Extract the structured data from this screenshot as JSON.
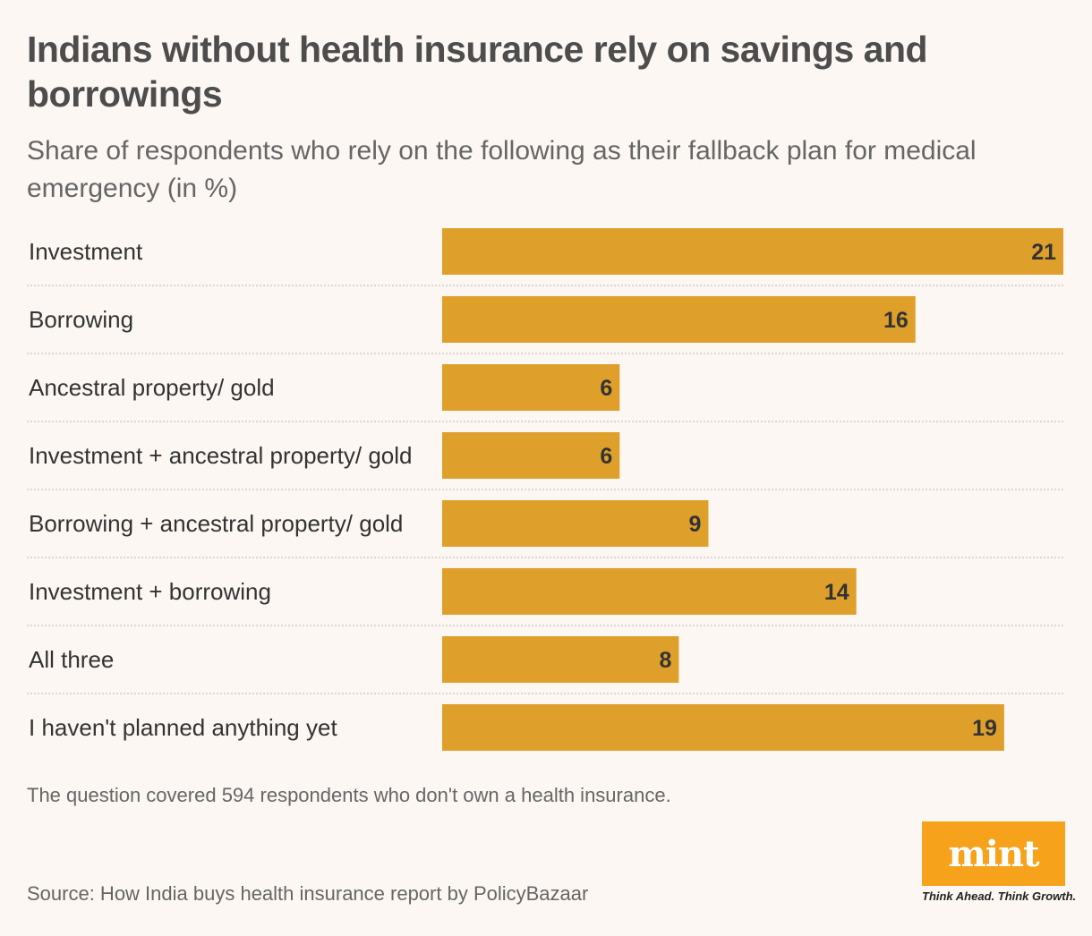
{
  "header": {
    "title": "Indians without health insurance rely on savings and borrowings",
    "subtitle": "Share of respondents who rely on the following as their fallback plan for medical emergency (in %)"
  },
  "chart_data": {
    "type": "bar",
    "orientation": "horizontal",
    "categories": [
      "Investment",
      "Borrowing",
      "Ancestral property/ gold",
      "Investment + ancestral property/ gold",
      "Borrowing + ancestral property/ gold",
      "Investment + borrowing",
      "All three",
      "I haven't planned anything yet"
    ],
    "values": [
      21,
      16,
      6,
      6,
      9,
      14,
      8,
      19
    ],
    "title": "Indians without health insurance rely on savings and borrowings",
    "xlabel": "",
    "ylabel": "",
    "xlim": [
      0,
      21
    ],
    "bar_color": "#dfa02b",
    "label_color": "#333333"
  },
  "footer": {
    "note": "The question covered 594 respondents who don't own a health insurance.",
    "source": "Source: How India buys health insurance report by PolicyBazaar"
  },
  "logo": {
    "name": "mint",
    "tagline": "Think Ahead. Think Growth.",
    "color": "#f7a21b"
  }
}
